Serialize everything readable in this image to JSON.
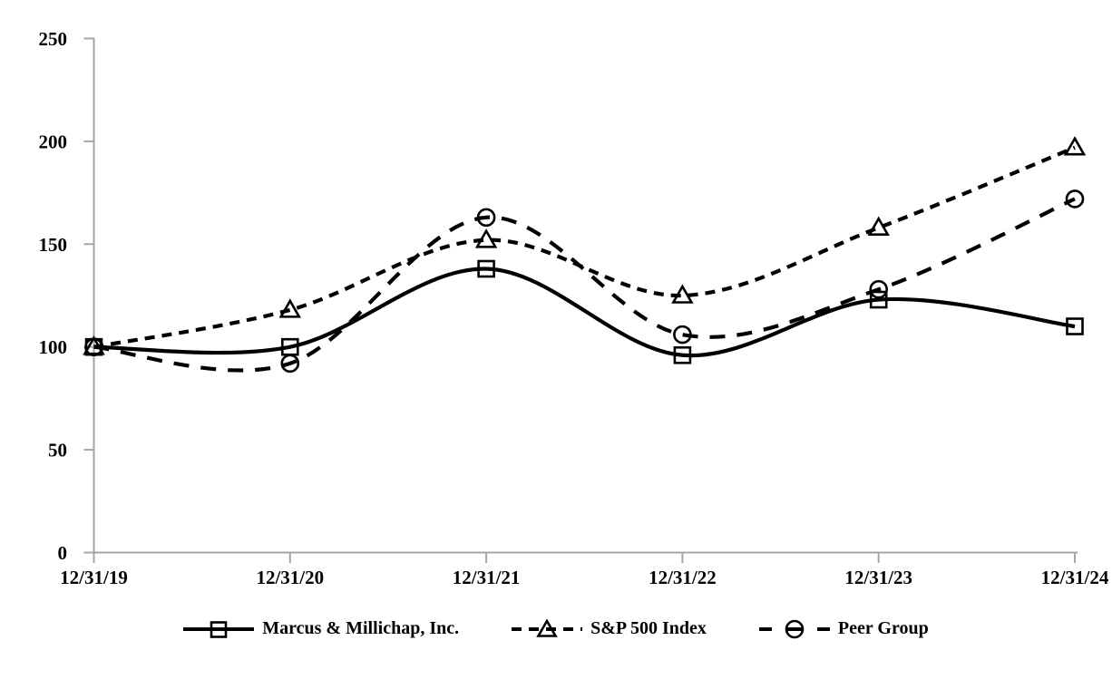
{
  "chart_data": {
    "type": "line",
    "title": "",
    "xlabel": "",
    "ylabel": "",
    "x_labels": [
      "12/31/19",
      "12/31/20",
      "12/31/21",
      "12/31/22",
      "12/31/23",
      "12/31/24"
    ],
    "y_ticks": [
      0,
      50,
      100,
      150,
      200,
      250
    ],
    "ylim": [
      0,
      250
    ],
    "grid": false,
    "legend_position": "bottom",
    "series": [
      {
        "name": "Marcus & Millichap, Inc.",
        "marker": "square",
        "line_style": "solid",
        "color": "#000000",
        "values": [
          100,
          100,
          138,
          96,
          123,
          110
        ]
      },
      {
        "name": "S&P 500 Index",
        "marker": "triangle",
        "line_style": "dashed-short",
        "color": "#000000",
        "values": [
          100,
          118,
          152,
          125,
          158,
          197
        ]
      },
      {
        "name": "Peer Group",
        "marker": "circle",
        "line_style": "dashed-long",
        "color": "#000000",
        "values": [
          100,
          92,
          163,
          106,
          128,
          172
        ]
      }
    ],
    "colors": {
      "axis": "#a6a6a6",
      "line": "#000000",
      "text": "#000000",
      "background": "#ffffff"
    }
  }
}
